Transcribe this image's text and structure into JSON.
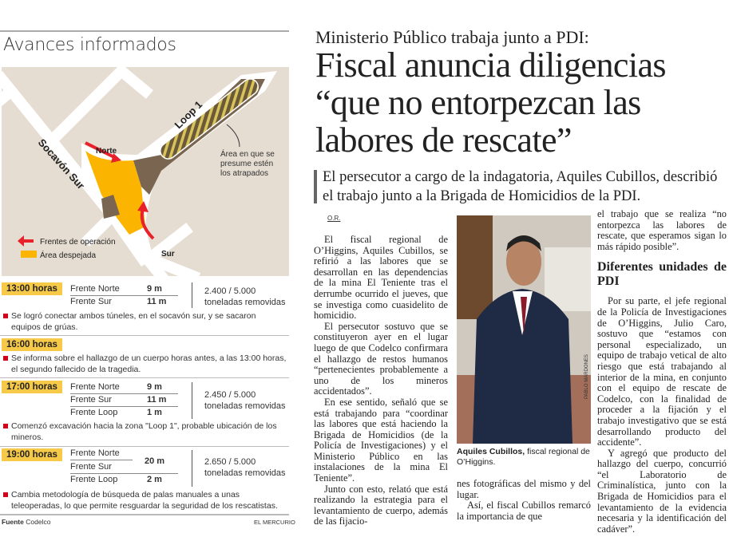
{
  "infographic": {
    "title": "Avances informados",
    "map_labels": {
      "loop": "Loop 1",
      "norte": "Norte",
      "socavon": "Socavón Sur",
      "sur": "Sur",
      "area_note": [
        "Área en que se",
        "presume estén",
        "los atrapados"
      ]
    },
    "legend": [
      {
        "label": "Frentes de operación",
        "color": "#e8212b"
      },
      {
        "label": "Área despejada",
        "color": "#fbb400"
      }
    ],
    "entries": [
      {
        "time": "13:00 horas",
        "fronts": [
          {
            "name": "Frente Norte",
            "value": "9 m"
          },
          {
            "name": "Frente Sur",
            "value": "11 m"
          }
        ],
        "tons": [
          "2.400 / 5.000",
          "toneladas removidas"
        ],
        "note": "Se logró conectar ambos túneles, en el socavón sur, y se sacaron equipos de grúas."
      },
      {
        "time": "16:00 horas",
        "note": "Se informa sobre el hallazgo de un cuerpo horas antes, a las 13:00 horas, el segundo fallecido de la tragedia."
      },
      {
        "time": "17:00 horas",
        "fronts": [
          {
            "name": "Frente Norte",
            "value": "9 m"
          },
          {
            "name": "Frente Sur",
            "value": "11 m"
          },
          {
            "name": "Frente Loop",
            "value": "1 m"
          }
        ],
        "tons": [
          "2.450 / 5.000",
          "toneladas removidas"
        ],
        "note": "Comenzó excavación hacia la zona \"Loop 1\", probable ubicación de los mineros."
      },
      {
        "time": "19:00 horas",
        "fronts": [
          {
            "name": "Frente Norte",
            "value": "20 m"
          },
          {
            "name": "Frente Sur",
            "value": ""
          },
          {
            "name": "Frente Loop",
            "value": "2 m"
          }
        ],
        "tons": [
          "2.650 / 5.000",
          "toneladas removidas"
        ],
        "note": "Cambia metodología de búsqueda de palas manuales a unas teleoperadas, lo que permite resguardar la seguridad de los rescatistas."
      }
    ],
    "source_label": "Fuente",
    "source": "Codelco",
    "brand": "EL MERCURIO",
    "highlight_color": "#f7c948"
  },
  "article": {
    "kicker": "Ministerio Público trabaja junto a PDI:",
    "headline": [
      "Fiscal anuncia diligencias",
      "“que no entorpezcan las",
      "labores de rescate”"
    ],
    "subhead": "El persecutor a cargo de la indagatoria, Aquiles Cubillos, describió el trabajo junto a la Brigada de Homicidios de la PDI.",
    "byline": "O.R.",
    "col1": [
      "El fiscal regional de O’Higgins, Aquiles Cubillos, se refirió a las labores que se desarrollan en las dependencias de la mina El Teniente tras el derrumbe ocurrido el jueves, que se investiga como cuasidelito de homicidio.",
      "El persecutor sostuvo que se constituyeron ayer en el lugar luego de que Codelco confirmara el hallazgo de restos humanos “pertenecientes probablemente a uno de los mineros accidentados”.",
      "En ese sentido, señaló que se está trabajando para “coordinar las labores que está haciendo la Brigada de Homicidios (de la Policía de Investigaciones) y el Ministerio Público en las instalaciones de la mina El Teniente”.",
      "Junto con esto, relató que está realizando la estrategia para el levantamiento de cuerpo, además de las fijacio-"
    ],
    "photo_credit": "PABLO MARDONES",
    "caption_name": "Aquiles Cubillos,",
    "caption_rest": " fiscal regional de O’Higgins.",
    "col2": [
      "nes fotográficas del mismo y del lugar.",
      "Así, el fiscal Cubillos remarcó la importancia de que"
    ],
    "col3_intro": "el trabajo que se realiza “no entorpezca las labores de rescate, que esperamos sigan lo más rápido posible”.",
    "subheading": "Diferentes unidades de PDI",
    "col3": [
      "Por su parte, el jefe regional de la Policía de Investigaciones de O’Higgins, Julio Caro, sostuvo que “estamos con personal especializado, un equipo de trabajo vetical de alto riesgo que está trabajando al interior de la mina, en conjunto con el equipo de rescate de Codelco, con la finalidad de proceder a la fijación y el trabajo investigativo que se está desarrollando producto del accidente”.",
      "Y agregó que producto del hallazgo del cuerpo, concurrió “el Laboratorio de Criminalística, junto con la Brigada de Homicidios para el levantamiento de la evidencia necesaria y la identificación del cadáver”."
    ]
  }
}
